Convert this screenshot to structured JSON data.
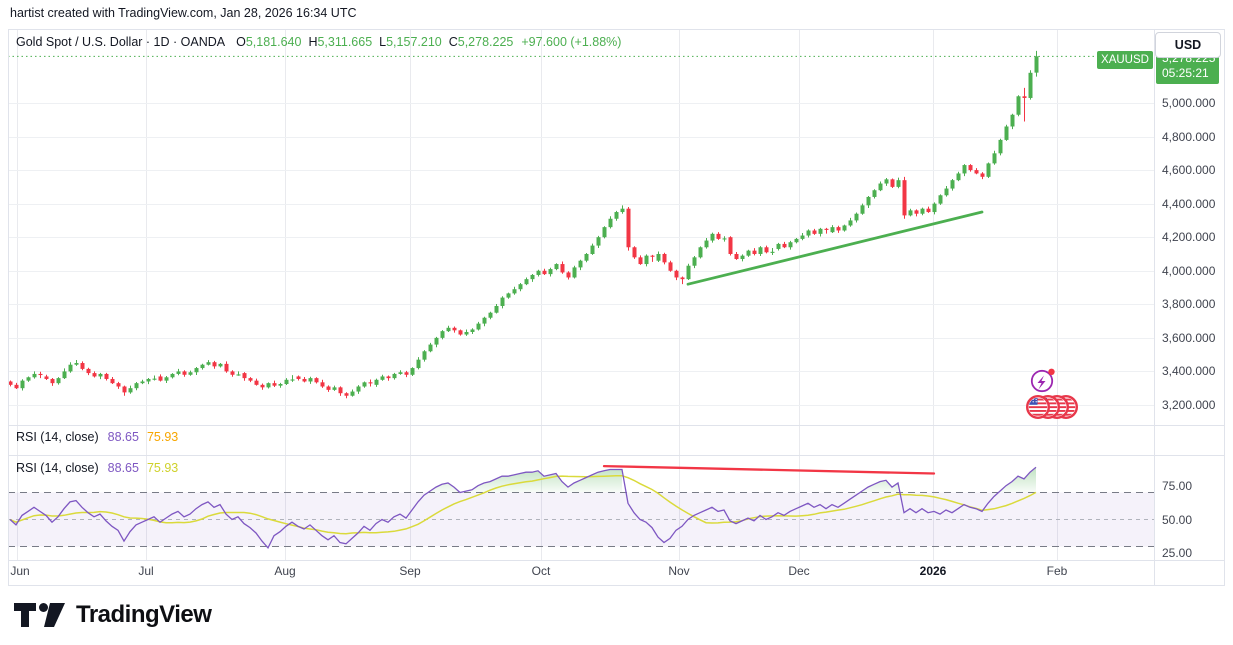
{
  "attribution": "hartist created with TradingView.com, Jan 28, 2026 16:34 UTC",
  "header": {
    "title": "Gold Spot / U.S. Dollar · 1D · OANDA",
    "o_label": "O",
    "o": "5,181.640",
    "h_label": "H",
    "h": "5,311.665",
    "l_label": "L",
    "l": "5,157.210",
    "c_label": "C",
    "c": "5,278.225",
    "change": "+97.600 (+1.88%)"
  },
  "panes": {
    "rsi1": {
      "title": "RSI (14, close)",
      "value": "88.65",
      "ma": "75.93"
    },
    "rsi2": {
      "title": "RSI (14, close)",
      "value": "88.65",
      "ma": "75.93"
    }
  },
  "axis": {
    "currency": "USD",
    "symbol_tag": "XAUUSD",
    "last_price": "5,278.225",
    "countdown": "05:25:21",
    "price_labels": [
      "5,000.000",
      "4,800.000",
      "4,600.000",
      "4,400.000",
      "4,200.000",
      "4,000.000",
      "3,800.000",
      "3,600.000",
      "3,400.000",
      "3,200.000"
    ],
    "rsi_labels": [
      "75.00",
      "50.00",
      "25.00"
    ],
    "time_labels": [
      "Jun",
      "Jul",
      "Aug",
      "Sep",
      "Oct",
      "Nov",
      "Dec",
      "2026",
      "Feb"
    ]
  },
  "logo": {
    "text": "TradingView"
  },
  "colors": {
    "up": "#4caf50",
    "down": "#f23645",
    "rsi_line": "#7e57c2",
    "rsi_ma": "#dada3b",
    "grid": "#eef0f3",
    "grid_v": "#e9eaee",
    "band": "rgba(126,87,194,0.08)",
    "dash": "#787b86",
    "dash_mid": "#b0b3bc",
    "separator": "#e0e3eb"
  },
  "chart_data": {
    "type": "candlestick",
    "title": "Gold Spot / U.S. Dollar · 1D · OANDA",
    "interval": "1D",
    "price_ylim": [
      3078,
      5436
    ],
    "rsi_ylim": [
      20,
      98
    ],
    "grid_prices": [
      5000,
      4800,
      4600,
      4400,
      4200,
      4000,
      3800,
      3600,
      3400,
      3200
    ],
    "rsi_grid": [
      70,
      50,
      30
    ],
    "rsi_ma_period": 14,
    "last_close": 5278.225,
    "candles": [
      [
        3340,
        3346,
        3311,
        3320
      ],
      [
        3320,
        3332,
        3295,
        3300
      ],
      [
        3300,
        3353,
        3286,
        3345
      ],
      [
        3345,
        3370,
        3338,
        3365
      ],
      [
        3365,
        3400,
        3357,
        3385
      ],
      [
        3385,
        3398,
        3360,
        3383
      ],
      [
        3370,
        3380,
        3349,
        3355
      ],
      [
        3355,
        3361,
        3314,
        3330
      ],
      [
        3330,
        3366,
        3321,
        3360
      ],
      [
        3360,
        3418,
        3355,
        3400
      ],
      [
        3400,
        3455,
        3392,
        3440
      ],
      [
        3440,
        3468,
        3433,
        3450
      ],
      [
        3450,
        3460,
        3407,
        3415
      ],
      [
        3415,
        3422,
        3378,
        3390
      ],
      [
        3390,
        3400,
        3364,
        3370
      ],
      [
        3370,
        3391,
        3354,
        3385
      ],
      [
        3385,
        3391,
        3346,
        3355
      ],
      [
        3355,
        3367,
        3325,
        3330
      ],
      [
        3330,
        3338,
        3296,
        3310
      ],
      [
        3310,
        3315,
        3255,
        3275
      ],
      [
        3275,
        3315,
        3267,
        3300
      ],
      [
        3300,
        3337,
        3288,
        3330
      ],
      [
        3330,
        3350,
        3324,
        3340
      ],
      [
        3340,
        3361,
        3324,
        3355
      ],
      [
        3355,
        3376,
        3346,
        3357
      ],
      [
        3370,
        3382,
        3340,
        3345
      ],
      [
        3345,
        3373,
        3331,
        3365
      ],
      [
        3365,
        3390,
        3358,
        3385
      ],
      [
        3385,
        3415,
        3377,
        3400
      ],
      [
        3400,
        3407,
        3368,
        3380
      ],
      [
        3380,
        3405,
        3374,
        3395
      ],
      [
        3395,
        3426,
        3379,
        3420
      ],
      [
        3420,
        3446,
        3411,
        3440
      ],
      [
        3440,
        3467,
        3435,
        3455
      ],
      [
        3455,
        3463,
        3416,
        3430
      ],
      [
        3430,
        3450,
        3423,
        3445
      ],
      [
        3445,
        3460,
        3392,
        3400
      ],
      [
        3400,
        3407,
        3368,
        3380
      ],
      [
        3380,
        3400,
        3374,
        3382
      ],
      [
        3390,
        3396,
        3344,
        3360
      ],
      [
        3360,
        3366,
        3336,
        3345
      ],
      [
        3345,
        3357,
        3315,
        3320
      ],
      [
        3320,
        3328,
        3291,
        3305
      ],
      [
        3305,
        3335,
        3298,
        3330
      ],
      [
        3330,
        3345,
        3307,
        3315
      ],
      [
        3315,
        3332,
        3303,
        3325
      ],
      [
        3325,
        3360,
        3319,
        3350
      ],
      [
        3350,
        3378,
        3338,
        3352
      ],
      [
        3370,
        3376,
        3346,
        3355
      ],
      [
        3355,
        3367,
        3335,
        3340
      ],
      [
        3340,
        3368,
        3326,
        3360
      ],
      [
        3360,
        3365,
        3328,
        3335
      ],
      [
        3335,
        3350,
        3302,
        3310
      ],
      [
        3310,
        3317,
        3278,
        3290
      ],
      [
        3290,
        3315,
        3284,
        3305
      ],
      [
        3305,
        3311,
        3254,
        3270
      ],
      [
        3270,
        3276,
        3240,
        3255
      ],
      [
        3255,
        3292,
        3250,
        3280
      ],
      [
        3280,
        3318,
        3266,
        3310
      ],
      [
        3310,
        3340,
        3303,
        3335
      ],
      [
        3335,
        3352,
        3310,
        3333
      ],
      [
        3320,
        3357,
        3308,
        3350
      ],
      [
        3350,
        3380,
        3344,
        3370
      ],
      [
        3370,
        3376,
        3344,
        3360
      ],
      [
        3360,
        3391,
        3351,
        3385
      ],
      [
        3385,
        3407,
        3380,
        3395
      ],
      [
        3395,
        3403,
        3366,
        3380
      ],
      [
        3380,
        3425,
        3373,
        3420
      ],
      [
        3420,
        3485,
        3412,
        3470
      ],
      [
        3470,
        3527,
        3458,
        3520
      ],
      [
        3520,
        3570,
        3514,
        3560
      ],
      [
        3560,
        3606,
        3544,
        3600
      ],
      [
        3600,
        3646,
        3591,
        3640
      ],
      [
        3640,
        3672,
        3635,
        3660
      ],
      [
        3660,
        3668,
        3631,
        3645
      ],
      [
        3645,
        3650,
        3613,
        3620
      ],
      [
        3620,
        3650,
        3612,
        3635
      ],
      [
        3635,
        3657,
        3623,
        3650
      ],
      [
        3650,
        3695,
        3644,
        3685
      ],
      [
        3685,
        3726,
        3669,
        3720
      ],
      [
        3720,
        3756,
        3711,
        3750
      ],
      [
        3750,
        3802,
        3745,
        3790
      ],
      [
        3790,
        3848,
        3776,
        3840
      ],
      [
        3840,
        3870,
        3833,
        3865
      ],
      [
        3865,
        3905,
        3857,
        3890
      ],
      [
        3890,
        3927,
        3878,
        3920
      ],
      [
        3920,
        3960,
        3914,
        3950
      ],
      [
        3950,
        3981,
        3934,
        3975
      ],
      [
        3975,
        4006,
        3966,
        4000
      ],
      [
        4000,
        4012,
        3975,
        3980
      ],
      [
        3980,
        4018,
        3966,
        4010
      ],
      [
        4010,
        4045,
        4003,
        4040
      ],
      [
        4040,
        4055,
        3982,
        3990
      ],
      [
        3990,
        3997,
        3948,
        3960
      ],
      [
        3960,
        4030,
        3954,
        4020
      ],
      [
        4020,
        4066,
        4004,
        4060
      ],
      [
        4060,
        4106,
        4051,
        4100
      ],
      [
        4100,
        4162,
        4095,
        4150
      ],
      [
        4150,
        4208,
        4136,
        4200
      ],
      [
        4200,
        4265,
        4193,
        4260
      ],
      [
        4260,
        4325,
        4252,
        4310
      ],
      [
        4310,
        4357,
        4298,
        4350
      ],
      [
        4350,
        4390,
        4340,
        4370
      ],
      [
        4370,
        4380,
        4120,
        4140
      ],
      [
        4140,
        4146,
        4071,
        4080
      ],
      [
        4080,
        4092,
        4035,
        4040
      ],
      [
        4040,
        4098,
        4026,
        4090
      ],
      [
        4090,
        4095,
        4053,
        4087
      ],
      [
        4060,
        4115,
        4052,
        4100
      ],
      [
        4100,
        4107,
        4038,
        4050
      ],
      [
        4050,
        4060,
        3994,
        4000
      ],
      [
        4000,
        4006,
        3944,
        3960
      ],
      [
        3960,
        3966,
        3920,
        3950
      ],
      [
        3950,
        4042,
        3945,
        4030
      ],
      [
        4030,
        4088,
        4016,
        4080
      ],
      [
        4080,
        4145,
        4073,
        4140
      ],
      [
        4140,
        4195,
        4132,
        4180
      ],
      [
        4180,
        4227,
        4168,
        4220
      ],
      [
        4220,
        4230,
        4184,
        4190
      ],
      [
        4190,
        4206,
        4174,
        4193
      ],
      [
        4200,
        4206,
        4091,
        4100
      ],
      [
        4100,
        4112,
        4065,
        4070
      ],
      [
        4070,
        4098,
        4056,
        4090
      ],
      [
        4090,
        4125,
        4083,
        4120
      ],
      [
        4120,
        4135,
        4092,
        4100
      ],
      [
        4100,
        4147,
        4088,
        4140
      ],
      [
        4140,
        4150,
        4104,
        4110
      ],
      [
        4110,
        4136,
        4094,
        4113
      ],
      [
        4130,
        4166,
        4121,
        4160
      ],
      [
        4160,
        4172,
        4135,
        4140
      ],
      [
        4140,
        4178,
        4126,
        4170
      ],
      [
        4170,
        4195,
        4163,
        4190
      ],
      [
        4190,
        4225,
        4182,
        4210
      ],
      [
        4210,
        4247,
        4198,
        4240
      ],
      [
        4240,
        4250,
        4214,
        4220
      ],
      [
        4220,
        4256,
        4204,
        4250
      ],
      [
        4250,
        4256,
        4221,
        4247
      ],
      [
        4230,
        4272,
        4225,
        4260
      ],
      [
        4260,
        4268,
        4226,
        4240
      ],
      [
        4240,
        4275,
        4233,
        4270
      ],
      [
        4270,
        4315,
        4262,
        4300
      ],
      [
        4300,
        4347,
        4288,
        4340
      ],
      [
        4340,
        4400,
        4334,
        4390
      ],
      [
        4390,
        4446,
        4374,
        4440
      ],
      [
        4440,
        4486,
        4431,
        4480
      ],
      [
        4480,
        4532,
        4475,
        4520
      ],
      [
        4520,
        4553,
        4506,
        4545
      ],
      [
        4545,
        4550,
        4493,
        4500
      ],
      [
        4500,
        4555,
        4492,
        4540
      ],
      [
        4540,
        4560,
        4310,
        4330
      ],
      [
        4330,
        4370,
        4324,
        4360
      ],
      [
        4360,
        4366,
        4324,
        4340
      ],
      [
        4340,
        4376,
        4331,
        4370
      ],
      [
        4370,
        4382,
        4345,
        4350
      ],
      [
        4350,
        4408,
        4336,
        4400
      ],
      [
        4400,
        4455,
        4393,
        4450
      ],
      [
        4450,
        4505,
        4442,
        4490
      ],
      [
        4490,
        4547,
        4478,
        4540
      ],
      [
        4540,
        4590,
        4534,
        4580
      ],
      [
        4580,
        4636,
        4564,
        4630
      ],
      [
        4630,
        4636,
        4591,
        4600
      ],
      [
        4600,
        4612,
        4575,
        4580
      ],
      [
        4580,
        4588,
        4546,
        4560
      ],
      [
        4560,
        4645,
        4553,
        4640
      ],
      [
        4640,
        4715,
        4632,
        4700
      ],
      [
        4700,
        4787,
        4688,
        4780
      ],
      [
        4780,
        4870,
        4774,
        4860
      ],
      [
        4860,
        4936,
        4844,
        4930
      ],
      [
        4930,
        5046,
        4921,
        5040
      ],
      [
        5040,
        5090,
        4890,
        5030
      ],
      [
        5030,
        5195,
        5020,
        5180
      ],
      [
        5181,
        5311,
        5157,
        5278
      ]
    ],
    "rsi": [
      50,
      46,
      53,
      56,
      59,
      56,
      53,
      48,
      52,
      58,
      63,
      64,
      59,
      55,
      52,
      54,
      49,
      45,
      42,
      34,
      41,
      46,
      48,
      50,
      52,
      48,
      51,
      54,
      56,
      52,
      54,
      58,
      61,
      63,
      59,
      61,
      54,
      50,
      52,
      47,
      44,
      40,
      34,
      29,
      38,
      41,
      45,
      48,
      45,
      43,
      46,
      42,
      38,
      35,
      38,
      33,
      32,
      36,
      40,
      45,
      42,
      47,
      50,
      48,
      52,
      54,
      51,
      57,
      63,
      68,
      71,
      74,
      76,
      77,
      74,
      70,
      71,
      72,
      75,
      77,
      78,
      80,
      82,
      82,
      83,
      84,
      85,
      85,
      86,
      82,
      83,
      84,
      78,
      74,
      77,
      79,
      81,
      83,
      85,
      86,
      87,
      87,
      87,
      62,
      55,
      50,
      48,
      44,
      37,
      33,
      36,
      42,
      45,
      50,
      53,
      55,
      57,
      59,
      56,
      57,
      49,
      47,
      49,
      51,
      49,
      53,
      50,
      52,
      55,
      53,
      56,
      58,
      60,
      62,
      59,
      61,
      58,
      61,
      59,
      62,
      65,
      68,
      71,
      74,
      76,
      78,
      79,
      74,
      77,
      55,
      58,
      55,
      58,
      55,
      56,
      54,
      57,
      55,
      58,
      61,
      59,
      58,
      56,
      62,
      67,
      71,
      75,
      78,
      82,
      80,
      85,
      88.65
    ],
    "trendline_price": {
      "from_index": 113,
      "from_price": 3920,
      "to_index": 162,
      "to_price": 4350
    },
    "trendline_rsi": {
      "from_index": 99,
      "from_value": 89.5,
      "to_index": 154,
      "to_value": 84
    }
  }
}
